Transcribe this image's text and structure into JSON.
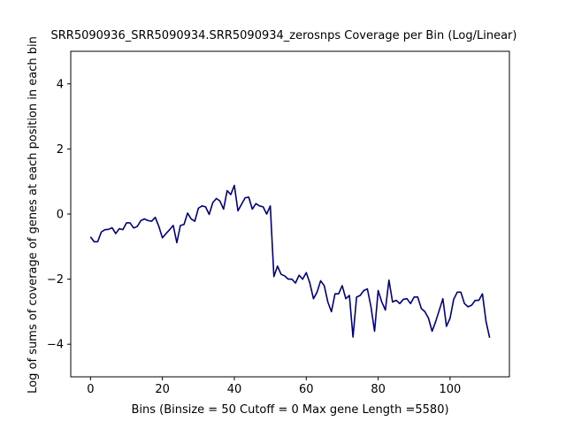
{
  "chart_data": {
    "type": "line",
    "title": "SRR5090936_SRR5090934.SRR5090934_zerosnps Coverage per Bin (Log/Linear)",
    "xlabel": "Bins  (Binsize = 50 Cutoff = 0 Max gene Length =5580)",
    "ylabel": "Log of sums of coverage of genes at each position in each bin",
    "xlim": [
      -5.5,
      116.5
    ],
    "ylim": [
      -5,
      5
    ],
    "xticks": [
      0,
      20,
      40,
      60,
      80,
      100
    ],
    "xtick_labels": [
      "0",
      "20",
      "40",
      "60",
      "80",
      "100"
    ],
    "yticks": [
      -4,
      -2,
      0,
      2,
      4
    ],
    "ytick_labels": [
      "−4",
      "−2",
      "0",
      "2",
      "4"
    ],
    "grid": false,
    "series": [
      {
        "name": "coverage",
        "color": "#000080",
        "x": [
          0,
          1,
          2,
          3,
          4,
          5,
          6,
          7,
          8,
          9,
          10,
          11,
          12,
          13,
          14,
          15,
          16,
          17,
          18,
          19,
          20,
          21,
          22,
          23,
          24,
          25,
          26,
          27,
          28,
          29,
          30,
          31,
          32,
          33,
          34,
          35,
          36,
          37,
          38,
          39,
          40,
          41,
          42,
          43,
          44,
          45,
          46,
          47,
          48,
          49,
          50,
          51,
          52,
          53,
          54,
          55,
          56,
          57,
          58,
          59,
          60,
          61,
          62,
          63,
          64,
          65,
          66,
          67,
          68,
          69,
          70,
          71,
          72,
          73,
          74,
          75,
          76,
          77,
          78,
          79,
          80,
          81,
          82,
          83,
          84,
          85,
          86,
          87,
          88,
          89,
          90,
          91,
          92,
          93,
          94,
          95,
          96,
          97,
          98,
          99,
          100,
          101,
          102,
          103,
          104,
          105,
          106,
          107,
          108,
          109,
          110,
          111
        ],
        "values": [
          -0.7,
          -0.85,
          -0.85,
          -0.55,
          -0.48,
          -0.47,
          -0.42,
          -0.6,
          -0.45,
          -0.48,
          -0.27,
          -0.27,
          -0.43,
          -0.38,
          -0.2,
          -0.15,
          -0.2,
          -0.22,
          -0.1,
          -0.38,
          -0.73,
          -0.6,
          -0.48,
          -0.35,
          -0.88,
          -0.35,
          -0.32,
          0.03,
          -0.15,
          -0.22,
          0.18,
          0.25,
          0.22,
          -0.01,
          0.35,
          0.48,
          0.4,
          0.15,
          0.72,
          0.6,
          0.88,
          0.1,
          0.3,
          0.5,
          0.52,
          0.15,
          0.32,
          0.25,
          0.22,
          0.0,
          0.25,
          -1.92,
          -1.6,
          -1.85,
          -1.9,
          -2.0,
          -2.0,
          -2.12,
          -1.88,
          -2.0,
          -1.8,
          -2.12,
          -2.6,
          -2.4,
          -2.05,
          -2.2,
          -2.7,
          -3.0,
          -2.45,
          -2.45,
          -2.2,
          -2.6,
          -2.5,
          -3.78,
          -2.55,
          -2.5,
          -2.35,
          -2.3,
          -2.85,
          -3.6,
          -2.35,
          -2.7,
          -2.95,
          -2.03,
          -2.7,
          -2.65,
          -2.75,
          -2.62,
          -2.6,
          -2.75,
          -2.55,
          -2.55,
          -2.9,
          -3.0,
          -3.2,
          -3.6,
          -3.3,
          -2.95,
          -2.6,
          -3.45,
          -3.2,
          -2.62,
          -2.4,
          -2.4,
          -2.75,
          -2.85,
          -2.8,
          -2.65,
          -2.65,
          -2.45,
          -3.3,
          -3.8
        ]
      }
    ]
  }
}
